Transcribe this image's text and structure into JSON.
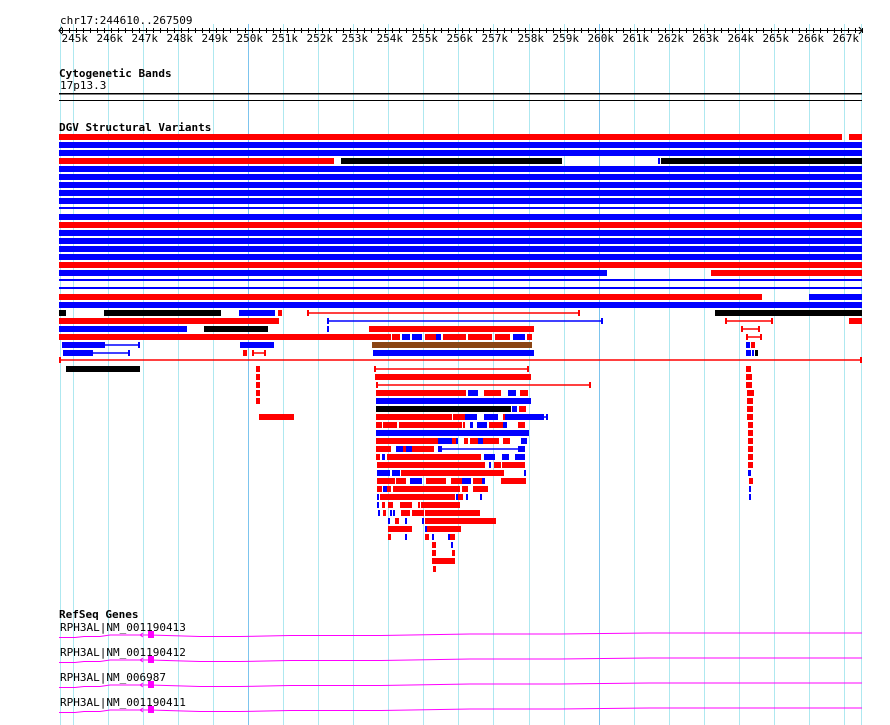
{
  "ruler": {
    "position_label": "chr17:244610..267509",
    "start": 244610,
    "end": 267509,
    "tick_labels": [
      "245k",
      "246k",
      "247k",
      "248k",
      "249k",
      "250k",
      "251k",
      "252k",
      "253k",
      "254k",
      "255k",
      "256k",
      "257k",
      "258k",
      "259k",
      "260k",
      "261k",
      "262k",
      "263k",
      "264k",
      "265k",
      "266k",
      "267k"
    ]
  },
  "tracks": {
    "cytoband": {
      "title": "Cytogenetic Bands",
      "band": "17p13.3"
    },
    "dgv": {
      "title": "DGV Structural Variants"
    },
    "refseq": {
      "title": "RefSeq Genes",
      "genes": [
        {
          "label": "RPH3AL|NM_001190413"
        },
        {
          "label": "RPH3AL|NM_001190412"
        },
        {
          "label": "RPH3AL|NM_006987"
        },
        {
          "label": "RPH3AL|NM_001190411"
        }
      ]
    }
  },
  "colors": {
    "loss": "#ff0000",
    "gain": "#0000ff",
    "complex": "#000000",
    "inversion": "#8b4513",
    "gene": "#ff00ff",
    "grid": "#aee8f0",
    "grid_major": "#7cc4ee"
  }
}
